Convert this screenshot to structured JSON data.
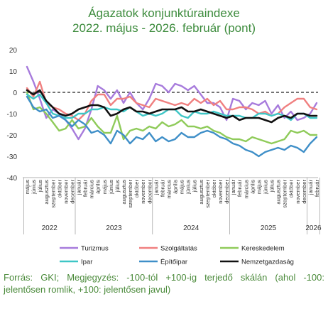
{
  "title_line1": "Ágazatok konjunktúraindexe",
  "title_line2": "2022. május - 2026. február (pont)",
  "footer": "Forrás: GKI; Megjegyzés: -100-tól +100-ig terjedő skálán (ahol -100: jelentősen romlik, +100: jelentősen javul)",
  "chart_data": {
    "type": "line",
    "ylim": [
      -40,
      20
    ],
    "yticks": [
      20,
      10,
      0,
      -10,
      -20,
      -30,
      -40
    ],
    "grid": false,
    "legend_position": "bottom",
    "x": [
      "május",
      "június",
      "július",
      "augusztus",
      "szeptember",
      "október",
      "november",
      "december",
      "január",
      "február",
      "március",
      "április",
      "május",
      "június",
      "július",
      "augusztus",
      "szeptember",
      "október",
      "november",
      "december",
      "január",
      "február",
      "március",
      "április",
      "május",
      "június",
      "július",
      "augusztus",
      "szeptember",
      "október",
      "november",
      "december",
      "január",
      "február",
      "március",
      "április",
      "május",
      "június",
      "július",
      "augusztus",
      "szeptember",
      "október",
      "november",
      "december",
      "január",
      "február"
    ],
    "years": [
      {
        "label": "2022",
        "from": 0,
        "to": 7
      },
      {
        "label": "2023",
        "from": 8,
        "to": 19
      },
      {
        "label": "2024",
        "from": 20,
        "to": 31
      },
      {
        "label": "2025",
        "from": 32,
        "to": 43
      },
      {
        "label": "2026",
        "from": 44,
        "to": 45
      }
    ],
    "reference_line": 0,
    "series": [
      {
        "name": "Turizmus",
        "color": "#a77bdc",
        "values": [
          12,
          5,
          -3,
          -12,
          -8,
          -10,
          -13,
          -17,
          -22,
          -17,
          -8,
          3,
          1,
          -3,
          1,
          -5,
          0,
          -5,
          -8,
          -3,
          4,
          3,
          0,
          4,
          3,
          1,
          3,
          -1,
          -5,
          -5,
          -7,
          -13,
          -3,
          -4,
          -8,
          -5,
          -6,
          -4,
          -10,
          -6,
          -12,
          -9,
          -13,
          -12,
          -10,
          -5
        ]
      },
      {
        "name": "Szolgáltatás",
        "color": "#f08080",
        "values": [
          2,
          -2,
          5,
          -5,
          -7,
          -8,
          -10,
          -11,
          -13,
          -10,
          -4,
          -1,
          -1,
          -6,
          -3,
          -3,
          -2,
          -5,
          -6,
          -7,
          -3,
          -4,
          -5,
          -6,
          -5,
          -6,
          -3,
          -5,
          -3,
          -6,
          -4,
          -8,
          -8,
          -7,
          -7,
          -8,
          -10,
          -9,
          -11,
          -10,
          -7,
          -5,
          -3,
          -3,
          -7,
          -8
        ]
      },
      {
        "name": "Kereskedelem",
        "color": "#8fcb5a",
        "values": [
          0,
          -8,
          -7,
          -10,
          -14,
          -18,
          -17,
          -13,
          -17,
          -16,
          -12,
          -16,
          -19,
          -19,
          -11,
          -22,
          -18,
          -17,
          -18,
          -16,
          -17,
          -14,
          -16,
          -15,
          -13,
          -16,
          -16,
          -17,
          -16,
          -18,
          -19,
          -21,
          -22,
          -22,
          -23,
          -21,
          -22,
          -23,
          -24,
          -23,
          -22,
          -18,
          -19,
          -18,
          -20,
          -20
        ]
      },
      {
        "name": "Ipar",
        "color": "#3ec6c6",
        "values": [
          -1,
          -3,
          -1,
          -5,
          -10,
          -11,
          -12,
          -12,
          -10,
          -10,
          -8,
          -8,
          -7,
          -8,
          -8,
          -9,
          -7,
          -9,
          -11,
          -10,
          -11,
          -10,
          -8,
          -8,
          -11,
          -12,
          -9,
          -10,
          -10,
          -9,
          -10,
          -11,
          -11,
          -11,
          -12,
          -12,
          -10,
          -10,
          -11,
          -10,
          -11,
          -13,
          -10,
          -10,
          -12,
          -12
        ]
      },
      {
        "name": "Építőipar",
        "color": "#3f8fc8",
        "values": [
          -2,
          -7,
          -9,
          -8,
          -12,
          -11,
          -13,
          -16,
          -13,
          -15,
          -19,
          -18,
          -20,
          -24,
          -18,
          -20,
          -24,
          -21,
          -22,
          -19,
          -23,
          -21,
          -23,
          -22,
          -19,
          -21,
          -21,
          -19,
          -18,
          -19,
          -21,
          -22,
          -24,
          -25,
          -27,
          -28,
          -30,
          -28,
          -27,
          -26,
          -27,
          -25,
          -26,
          -28,
          -24,
          -21
        ]
      },
      {
        "name": "Nemzetgazdaság",
        "color": "#111111",
        "values": [
          1,
          -1,
          1,
          -4,
          -7,
          -10,
          -11,
          -10,
          -8,
          -7,
          -6,
          -6,
          -7,
          -11,
          -10,
          -8,
          -7,
          -9,
          -9,
          -10,
          -9,
          -8,
          -8,
          -8,
          -7,
          -9,
          -9,
          -8,
          -9,
          -10,
          -11,
          -12,
          -11,
          -13,
          -12,
          -12,
          -12,
          -13,
          -14,
          -12,
          -11,
          -12,
          -10,
          -10,
          -11,
          -11
        ]
      }
    ]
  }
}
